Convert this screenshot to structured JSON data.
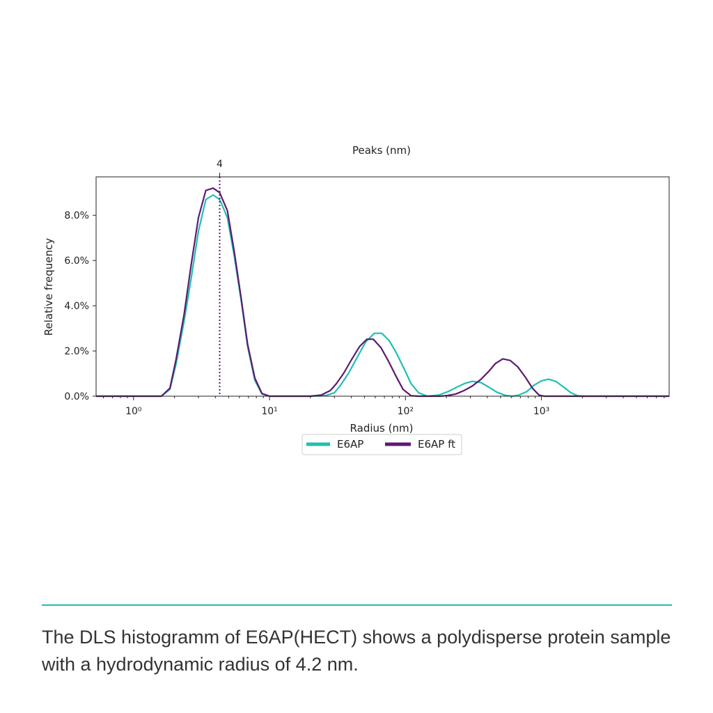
{
  "chart_data": {
    "type": "line",
    "top_axis_label": "Peaks (nm)",
    "peak_markers": [
      {
        "x": 4.3,
        "label": "4"
      }
    ],
    "xlabel": "Radius (nm)",
    "ylabel": "Relative frequency",
    "x_scale": "log",
    "xlim": [
      0.53,
      8700
    ],
    "ylim": [
      0,
      9.7
    ],
    "x_ticks": [
      {
        "value": 1,
        "label": "10⁰"
      },
      {
        "value": 10,
        "label": "10¹"
      },
      {
        "value": 100,
        "label": "10²"
      },
      {
        "value": 1000,
        "label": "10³"
      }
    ],
    "y_ticks": [
      {
        "value": 0,
        "label": "0.0%"
      },
      {
        "value": 2,
        "label": "2.0%"
      },
      {
        "value": 4,
        "label": "4.0%"
      },
      {
        "value": 6,
        "label": "6.0%"
      },
      {
        "value": 8,
        "label": "8.0%"
      }
    ],
    "legend_placement": "below-center",
    "series": [
      {
        "name": "E6AP",
        "color": "#1fbfb0",
        "points": [
          [
            0.53,
            0
          ],
          [
            1.0,
            0
          ],
          [
            1.6,
            0
          ],
          [
            1.85,
            0.3
          ],
          [
            2.05,
            1.4
          ],
          [
            2.35,
            3.3
          ],
          [
            2.65,
            5.2
          ],
          [
            3.0,
            7.3
          ],
          [
            3.4,
            8.7
          ],
          [
            3.85,
            8.9
          ],
          [
            4.3,
            8.7
          ],
          [
            4.9,
            7.9
          ],
          [
            5.5,
            6.2
          ],
          [
            6.2,
            4.2
          ],
          [
            6.9,
            2.2
          ],
          [
            7.8,
            0.7
          ],
          [
            8.8,
            0.1
          ],
          [
            10,
            0
          ],
          [
            20,
            0
          ],
          [
            26,
            0.03
          ],
          [
            30,
            0.15
          ],
          [
            33,
            0.45
          ],
          [
            38,
            1.0
          ],
          [
            44,
            1.7
          ],
          [
            51,
            2.4
          ],
          [
            59,
            2.78
          ],
          [
            67,
            2.78
          ],
          [
            76,
            2.45
          ],
          [
            86,
            1.9
          ],
          [
            98,
            1.2
          ],
          [
            110,
            0.55
          ],
          [
            125,
            0.15
          ],
          [
            145,
            0
          ],
          [
            175,
            0.05
          ],
          [
            205,
            0.2
          ],
          [
            235,
            0.38
          ],
          [
            270,
            0.55
          ],
          [
            310,
            0.66
          ],
          [
            360,
            0.6
          ],
          [
            410,
            0.4
          ],
          [
            470,
            0.18
          ],
          [
            540,
            0.04
          ],
          [
            610,
            0
          ],
          [
            680,
            0.05
          ],
          [
            780,
            0.2
          ],
          [
            880,
            0.48
          ],
          [
            1000,
            0.68
          ],
          [
            1130,
            0.75
          ],
          [
            1280,
            0.65
          ],
          [
            1460,
            0.4
          ],
          [
            1650,
            0.15
          ],
          [
            1850,
            0.02
          ],
          [
            2000,
            0
          ],
          [
            8700,
            0
          ]
        ]
      },
      {
        "name": "E6AP ft",
        "color": "#5b1a72",
        "points": [
          [
            0.53,
            0
          ],
          [
            1.0,
            0
          ],
          [
            1.6,
            0
          ],
          [
            1.85,
            0.35
          ],
          [
            2.05,
            1.6
          ],
          [
            2.35,
            3.6
          ],
          [
            2.65,
            5.8
          ],
          [
            3.0,
            7.9
          ],
          [
            3.4,
            9.1
          ],
          [
            3.85,
            9.2
          ],
          [
            4.3,
            9.0
          ],
          [
            4.9,
            8.2
          ],
          [
            5.5,
            6.4
          ],
          [
            6.2,
            4.3
          ],
          [
            6.9,
            2.3
          ],
          [
            7.8,
            0.8
          ],
          [
            8.8,
            0.12
          ],
          [
            10,
            0
          ],
          [
            20,
            0
          ],
          [
            24,
            0.05
          ],
          [
            28,
            0.25
          ],
          [
            31,
            0.55
          ],
          [
            35,
            1.0
          ],
          [
            40,
            1.6
          ],
          [
            46,
            2.2
          ],
          [
            52,
            2.52
          ],
          [
            58,
            2.52
          ],
          [
            66,
            2.15
          ],
          [
            75,
            1.55
          ],
          [
            85,
            0.9
          ],
          [
            96,
            0.3
          ],
          [
            110,
            0.02
          ],
          [
            125,
            0
          ],
          [
            180,
            0
          ],
          [
            205,
            0.03
          ],
          [
            235,
            0.1
          ],
          [
            270,
            0.25
          ],
          [
            310,
            0.45
          ],
          [
            360,
            0.75
          ],
          [
            410,
            1.1
          ],
          [
            460,
            1.45
          ],
          [
            520,
            1.65
          ],
          [
            590,
            1.58
          ],
          [
            670,
            1.3
          ],
          [
            760,
            0.85
          ],
          [
            860,
            0.35
          ],
          [
            960,
            0.05
          ],
          [
            1050,
            0
          ],
          [
            8700,
            0
          ]
        ]
      }
    ]
  },
  "caption": "The DLS histogramm of E6AP(HECT) shows a polydisperse protein sample with a hydrodynamic radius of 4.2 nm."
}
